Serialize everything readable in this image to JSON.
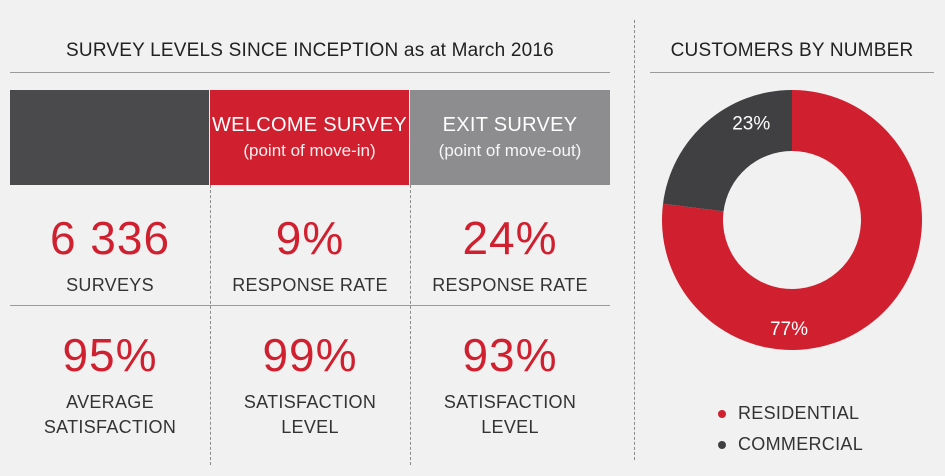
{
  "survey": {
    "title": "SURVEY LEVELS SINCE INCEPTION as at March 2016",
    "headers": [
      {
        "main": "",
        "sub": "",
        "color": "#4a4a4c"
      },
      {
        "main": "WELCOME SURVEY",
        "sub": "(point of move-in)",
        "color": "#d0202f"
      },
      {
        "main": "EXIT SURVEY",
        "sub": "(point of move-out)",
        "color": "#8d8d8f"
      }
    ],
    "row1": [
      {
        "value": "6 336",
        "label": "SURVEYS"
      },
      {
        "value": "9%",
        "label": "RESPONSE RATE"
      },
      {
        "value": "24%",
        "label": "RESPONSE RATE"
      }
    ],
    "row2": [
      {
        "value": "95%",
        "label1": "AVERAGE",
        "label2": "SATISFACTION"
      },
      {
        "value": "99%",
        "label1": "SATISFACTION",
        "label2": "LEVEL"
      },
      {
        "value": "93%",
        "label1": "SATISFACTION",
        "label2": "LEVEL"
      }
    ]
  },
  "customers": {
    "title": "CUSTOMERS BY NUMBER",
    "legend": [
      {
        "label": "RESIDENTIAL",
        "color": "#d0202f"
      },
      {
        "label": "COMMERCIAL",
        "color": "#404042"
      }
    ]
  },
  "chart_data": {
    "type": "pie",
    "title": "CUSTOMERS BY NUMBER",
    "categories": [
      "RESIDENTIAL",
      "COMMERCIAL"
    ],
    "values": [
      77,
      23
    ],
    "labels": [
      "77%",
      "23%"
    ],
    "colors": [
      "#d0202f",
      "#404042"
    ],
    "donut": true,
    "legend_position": "bottom"
  }
}
